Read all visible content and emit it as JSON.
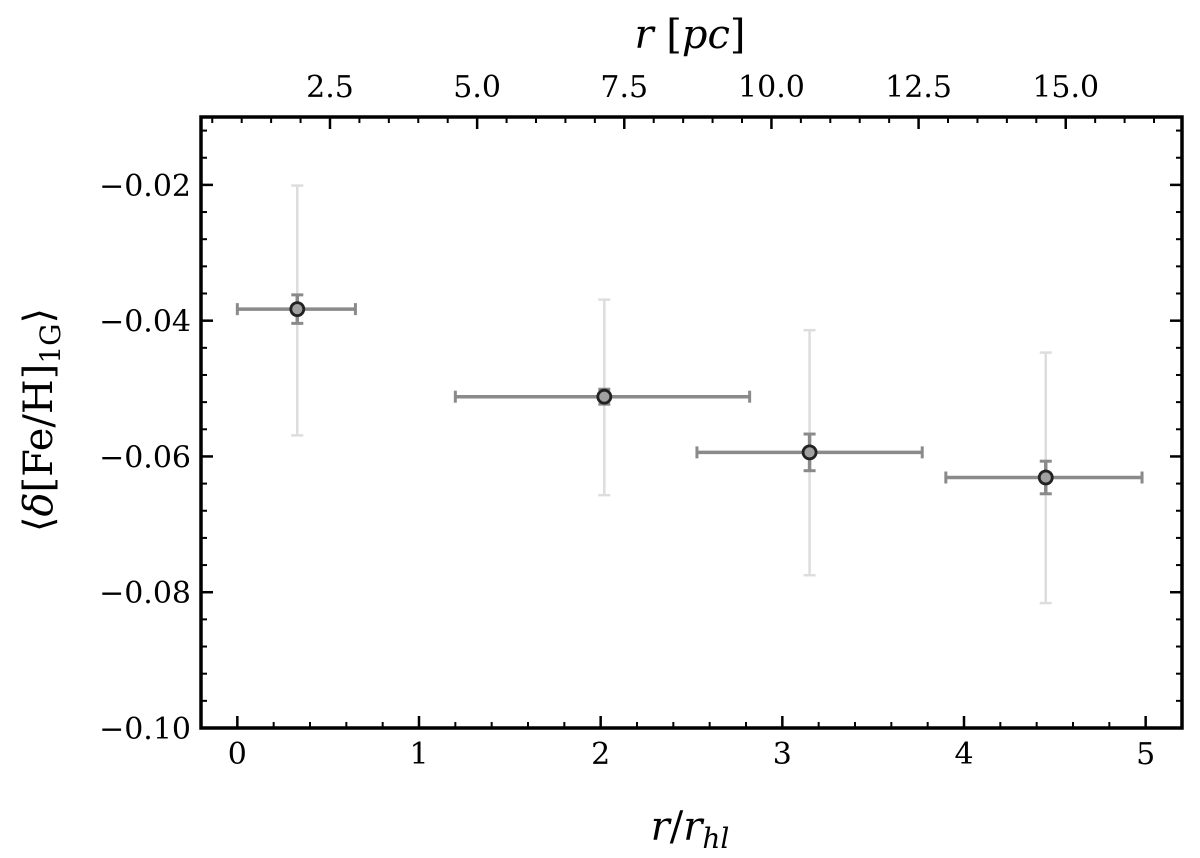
{
  "chart_data": {
    "type": "scatter",
    "title": "",
    "xlabel": "r/r_hl",
    "ylabel": "⟨δ[Fe/H]_1G⟩",
    "top_xlabel": "r [pc]",
    "xlim": [
      -0.2,
      5.2
    ],
    "ylim": [
      -0.1,
      -0.01
    ],
    "x_ticks": [
      0,
      1,
      2,
      3,
      4,
      5
    ],
    "x_tick_labels": [
      "0",
      "1",
      "2",
      "3",
      "4",
      "5"
    ],
    "y_ticks": [
      -0.1,
      -0.08,
      -0.06,
      -0.04,
      -0.02
    ],
    "y_tick_labels": [
      "−0.10",
      "−0.08",
      "−0.06",
      "−0.04",
      "−0.02"
    ],
    "top_tick_labels": [
      "2.5",
      "5.0",
      "7.5",
      "10.0",
      "12.5",
      "15.0"
    ],
    "top_tick_positions_in_x_units": [
      0.51,
      1.32,
      2.13,
      2.94,
      3.75,
      4.56
    ],
    "grid": false,
    "legend": "none",
    "colors": {
      "marker_fill": "#a0a0a0",
      "marker_edge": "#222222",
      "errorbar_dark": "#8a8a8a",
      "errorbar_light": "#dddddd"
    },
    "series": [
      {
        "points": [
          {
            "x": 0.33,
            "y": -0.0383,
            "x_lo": 0.0,
            "x_hi": 0.65,
            "yerr_small": 0.0021,
            "yerr_large_lo": 0.0186,
            "yerr_large_hi": 0.0182
          },
          {
            "x": 2.02,
            "y": -0.0512,
            "x_lo": 1.2,
            "x_hi": 2.82,
            "yerr_small": 0.0011,
            "yerr_large_lo": 0.0145,
            "yerr_large_hi": 0.0143
          },
          {
            "x": 3.15,
            "y": -0.0594,
            "x_lo": 2.53,
            "x_hi": 3.77,
            "yerr_small": 0.0027,
            "yerr_large_lo": 0.0181,
            "yerr_large_hi": 0.018
          },
          {
            "x": 4.45,
            "y": -0.0631,
            "x_lo": 3.9,
            "x_hi": 4.98,
            "yerr_small": 0.0024,
            "yerr_large_lo": 0.0185,
            "yerr_large_hi": 0.0184
          }
        ]
      }
    ]
  }
}
